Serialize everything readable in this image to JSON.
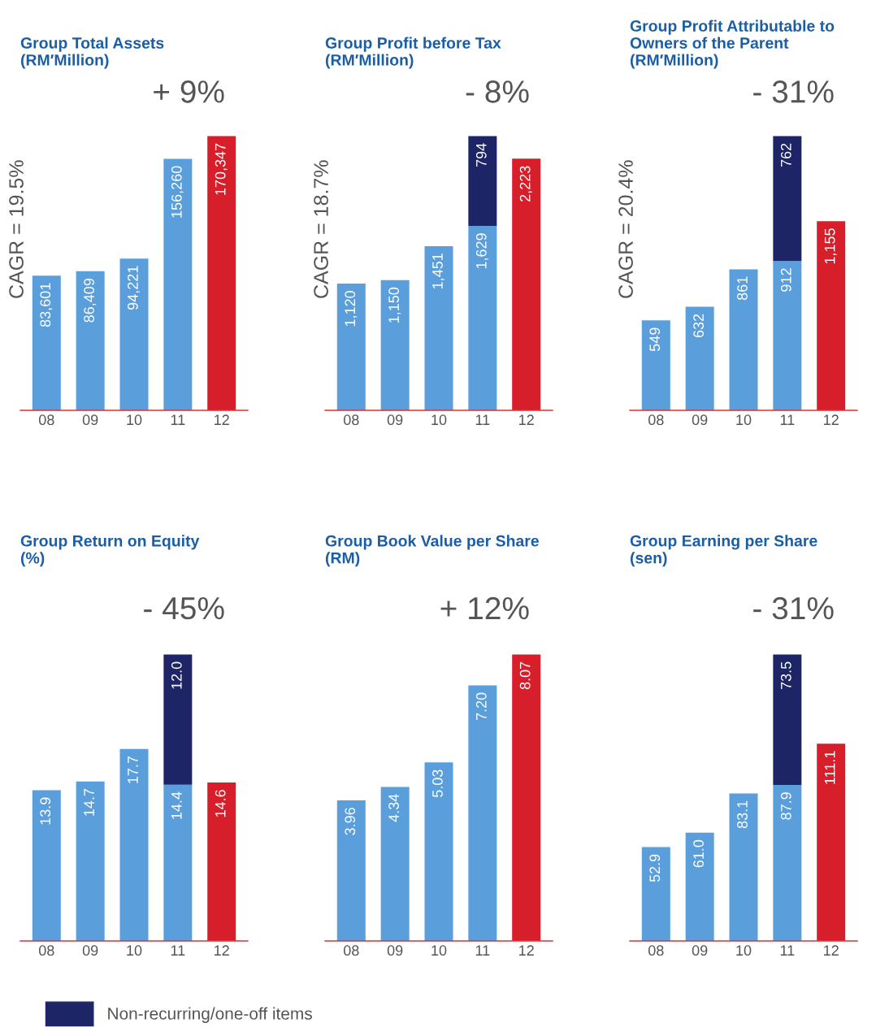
{
  "chart_data": [
    {
      "type": "bar",
      "title": "Group Total Assets\n(RM′Million)",
      "categories": [
        "08",
        "09",
        "10",
        "11",
        "12"
      ],
      "stacked": true,
      "tick_labels": "x",
      "grid": false,
      "annotations": [
        "+ 9%",
        "CAGR = 19.5%"
      ],
      "series": [
        {
          "colors": [
            "#5a9fdc",
            "#5a9fdc",
            "#5a9fdc",
            "#5a9fdc",
            "#d71f2b"
          ],
          "values": [
            83601,
            86409,
            94221,
            156260,
            170347
          ],
          "value_labels": [
            "83,601",
            "86,409",
            "94,221",
            "156,260",
            "170,347"
          ]
        }
      ]
    },
    {
      "type": "bar",
      "title": "Group Profit before Tax\n(RM′Million)",
      "categories": [
        "08",
        "09",
        "10",
        "11",
        "12"
      ],
      "stacked": true,
      "tick_labels": "x",
      "grid": false,
      "annotations": [
        "- 8%",
        "CAGR = 18.7%"
      ],
      "series": [
        {
          "colors": [
            "#5a9fdc",
            "#5a9fdc",
            "#5a9fdc",
            "#5a9fdc",
            "#d71f2b"
          ],
          "values": [
            1120,
            1150,
            1451,
            1629,
            2223
          ],
          "value_labels": [
            "1,120",
            "1,150",
            "1,451",
            "1,629",
            "2,223"
          ]
        },
        {
          "color": "#1d2566",
          "values": [
            null,
            null,
            null,
            794,
            null
          ],
          "value_labels": [
            null,
            null,
            null,
            "794",
            null
          ]
        }
      ]
    },
    {
      "type": "bar",
      "title": "Group Profit Attributable to\nOwners of the Parent\n(RM′Million)",
      "categories": [
        "08",
        "09",
        "10",
        "11",
        "12"
      ],
      "stacked": true,
      "tick_labels": "x",
      "grid": false,
      "annotations": [
        "- 31%",
        "CAGR = 20.4%"
      ],
      "series": [
        {
          "colors": [
            "#5a9fdc",
            "#5a9fdc",
            "#5a9fdc",
            "#5a9fdc",
            "#d71f2b"
          ],
          "values": [
            549,
            632,
            861,
            912,
            1155
          ],
          "value_labels": [
            "549",
            "632",
            "861",
            "912",
            "1,155"
          ]
        },
        {
          "color": "#1d2566",
          "values": [
            null,
            null,
            null,
            762,
            null
          ],
          "value_labels": [
            null,
            null,
            null,
            "762",
            null
          ]
        }
      ]
    },
    {
      "type": "bar",
      "title": "Group Return on Equity\n(%)",
      "categories": [
        "08",
        "09",
        "10",
        "11",
        "12"
      ],
      "stacked": true,
      "tick_labels": "x",
      "grid": false,
      "annotations": [
        "- 45%"
      ],
      "series": [
        {
          "colors": [
            "#5a9fdc",
            "#5a9fdc",
            "#5a9fdc",
            "#5a9fdc",
            "#d71f2b"
          ],
          "values": [
            13.9,
            14.7,
            17.7,
            14.4,
            14.6
          ],
          "value_labels": [
            "13.9",
            "14.7",
            "17.7",
            "14.4",
            "14.6"
          ]
        },
        {
          "color": "#1d2566",
          "values": [
            null,
            null,
            null,
            12.0,
            null
          ],
          "value_labels": [
            null,
            null,
            null,
            "12.0",
            null
          ]
        }
      ]
    },
    {
      "type": "bar",
      "title": "Group Book Value per Share\n(RM)",
      "categories": [
        "08",
        "09",
        "10",
        "11",
        "12"
      ],
      "stacked": true,
      "tick_labels": "x",
      "grid": false,
      "annotations": [
        "+ 12%"
      ],
      "series": [
        {
          "colors": [
            "#5a9fdc",
            "#5a9fdc",
            "#5a9fdc",
            "#5a9fdc",
            "#d71f2b"
          ],
          "values": [
            3.96,
            4.34,
            5.03,
            7.2,
            8.07
          ],
          "value_labels": [
            "3.96",
            "4.34",
            "5.03",
            "7.20",
            "8.07"
          ]
        }
      ]
    },
    {
      "type": "bar",
      "title": "Group Earning per Share\n(sen)",
      "categories": [
        "08",
        "09",
        "10",
        "11",
        "12"
      ],
      "stacked": true,
      "tick_labels": "x",
      "grid": false,
      "legend": "bottom",
      "annotations": [
        "- 31%"
      ],
      "series": [
        {
          "colors": [
            "#5a9fdc",
            "#5a9fdc",
            "#5a9fdc",
            "#5a9fdc",
            "#d71f2b"
          ],
          "values": [
            52.9,
            61.0,
            83.1,
            87.9,
            111.1
          ],
          "value_labels": [
            "52.9",
            "61.0",
            "83.1",
            "87.9",
            "111.1"
          ]
        },
        {
          "name": "Non-recurring/one-off items",
          "color": "#1d2566",
          "values": [
            null,
            null,
            null,
            73.5,
            null
          ],
          "value_labels": [
            null,
            null,
            null,
            "73.5",
            null
          ]
        }
      ]
    }
  ]
}
